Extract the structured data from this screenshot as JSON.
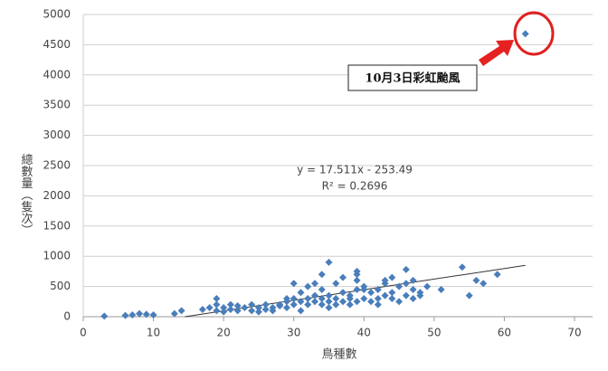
{
  "chart_data": {
    "type": "scatter",
    "x_label": "鳥種數",
    "y_label": "總數量（隻次）",
    "xlim": [
      0,
      70
    ],
    "xticks": [
      0,
      10,
      20,
      30,
      40,
      50,
      60,
      70
    ],
    "ylim": [
      0,
      5000
    ],
    "yticks": [
      0,
      500,
      1000,
      1500,
      2000,
      2500,
      3000,
      3500,
      4000,
      4500,
      5000
    ],
    "grid": true,
    "color": "#4a7ebb",
    "x": [
      3,
      6,
      7,
      8,
      9,
      10,
      13,
      14,
      17,
      18,
      19,
      19,
      19,
      20,
      20,
      21,
      21,
      22,
      22,
      23,
      24,
      24,
      25,
      25,
      26,
      26,
      27,
      27,
      28,
      28,
      29,
      29,
      29,
      30,
      30,
      30,
      31,
      31,
      31,
      32,
      32,
      32,
      33,
      33,
      33,
      34,
      34,
      34,
      34,
      35,
      35,
      35,
      35,
      36,
      36,
      36,
      37,
      37,
      37,
      38,
      38,
      38,
      39,
      39,
      39,
      39,
      39,
      40,
      40,
      40,
      41,
      41,
      42,
      42,
      42,
      43,
      43,
      43,
      44,
      44,
      44,
      45,
      45,
      46,
      46,
      46,
      47,
      47,
      47,
      48,
      48,
      49,
      51,
      54,
      55,
      56,
      57,
      59,
      63
    ],
    "values": [
      10,
      20,
      30,
      50,
      40,
      30,
      50,
      100,
      120,
      150,
      300,
      200,
      100,
      150,
      80,
      120,
      200,
      100,
      180,
      150,
      100,
      200,
      150,
      80,
      120,
      200,
      150,
      100,
      200,
      180,
      150,
      250,
      300,
      200,
      550,
      300,
      100,
      250,
      400,
      200,
      300,
      500,
      250,
      350,
      550,
      200,
      300,
      700,
      450,
      900,
      250,
      150,
      350,
      200,
      300,
      550,
      250,
      400,
      650,
      200,
      350,
      300,
      450,
      750,
      700,
      600,
      250,
      300,
      450,
      500,
      250,
      400,
      300,
      450,
      200,
      350,
      550,
      600,
      400,
      650,
      300,
      250,
      500,
      550,
      780,
      350,
      600,
      450,
      300,
      400,
      350,
      500,
      450,
      820,
      350,
      600,
      550,
      700,
      4680
    ],
    "trendline": {
      "slope": 17.511,
      "intercept": -253.49,
      "x_range": [
        14.5,
        63
      ]
    },
    "equation": "y = 17.511x - 253.49",
    "r_squared": "R² = 0.2696",
    "annotation": "10月3日彩虹颱風"
  }
}
